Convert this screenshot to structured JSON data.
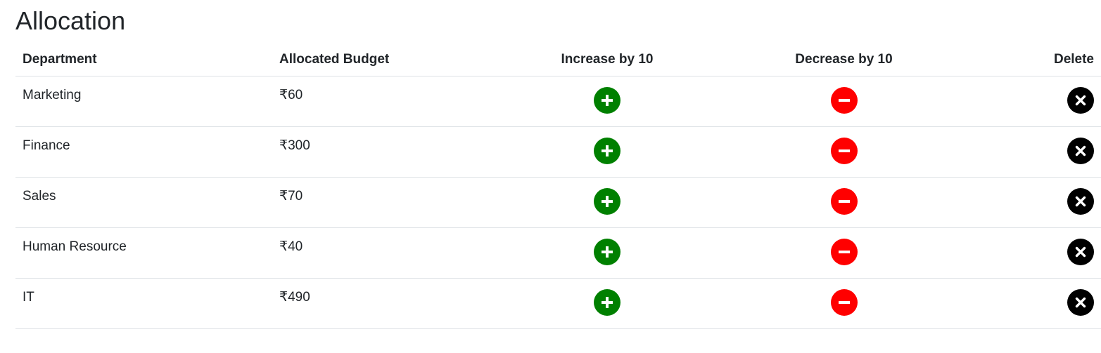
{
  "page": {
    "title": "Allocation"
  },
  "table": {
    "headers": {
      "department": "Department",
      "budget": "Allocated Budget",
      "increase": "Increase by 10",
      "decrease": "Decrease by 10",
      "delete": "Delete"
    },
    "rows": [
      {
        "department": "Marketing",
        "budget": "₹60"
      },
      {
        "department": "Finance",
        "budget": "₹300"
      },
      {
        "department": "Sales",
        "budget": "₹70"
      },
      {
        "department": "Human Resource",
        "budget": "₹40"
      },
      {
        "department": "IT",
        "budget": "₹490"
      }
    ]
  },
  "icons": {
    "increase": "plus-circle-icon",
    "decrease": "minus-circle-icon",
    "delete": "x-circle-icon"
  },
  "colors": {
    "increase": "#008000",
    "decrease": "#ff0000",
    "delete": "#000000"
  }
}
